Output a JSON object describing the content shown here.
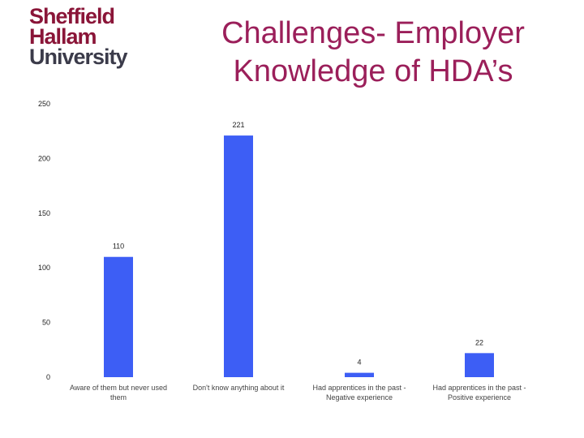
{
  "logo": {
    "line1": "Sheffield",
    "line2": "Hallam",
    "line3": "University",
    "colors": {
      "line1": "#8a1538",
      "line2": "#8a1538",
      "line3": "#3b3b4a"
    }
  },
  "chart_data": {
    "type": "bar",
    "title": "Challenges- Employer Knowledge of HDA’s",
    "categories": [
      "Aware of them but never used them",
      "Don't know anything about it",
      "Had apprentices in the past - Negative experience",
      "Had apprentices in the past - Positive experience"
    ],
    "values": [
      110,
      221,
      4,
      22
    ],
    "data_labels": [
      "110",
      "221",
      "4",
      "22"
    ],
    "yticks": [
      "0",
      "50",
      "100",
      "150",
      "200",
      "250"
    ],
    "ylim": [
      0,
      250
    ],
    "grid": false,
    "legend": "none",
    "bar_color": "#3d5ef5",
    "title_color": "#9b1f5a"
  }
}
